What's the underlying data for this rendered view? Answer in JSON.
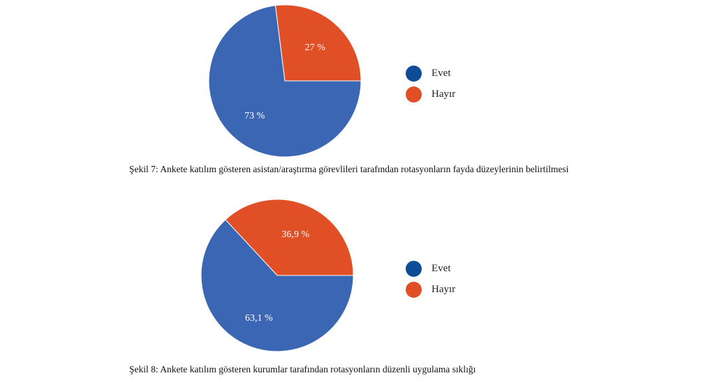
{
  "colors": {
    "evet": "#3A66B3",
    "hayir": "#E14F26",
    "legend_evet": "#0D4C96",
    "legend_hayir": "#E14F26"
  },
  "chart_data": [
    {
      "type": "pie",
      "categories": [
        "Evet",
        "Hayır"
      ],
      "values": [
        73,
        27
      ],
      "labels": [
        "73 %",
        "27 %"
      ],
      "caption": "Şekil 7: Ankete katılım gösteren asistan/araştırma görevlileri tarafından rotasyonların fayda düzeylerinin belirtilmesi",
      "legend": {
        "position": "right",
        "entries": [
          "Evet",
          "Hayır"
        ]
      }
    },
    {
      "type": "pie",
      "categories": [
        "Evet",
        "Hayır"
      ],
      "values": [
        63.1,
        36.9
      ],
      "labels": [
        "63,1 %",
        "36,9 %"
      ],
      "caption": "Şekil 8: Ankete katılım gösteren kurumlar tarafından rotasyonların düzenli uygulama sıklığı",
      "legend": {
        "position": "right",
        "entries": [
          "Evet",
          "Hayır"
        ]
      }
    }
  ]
}
